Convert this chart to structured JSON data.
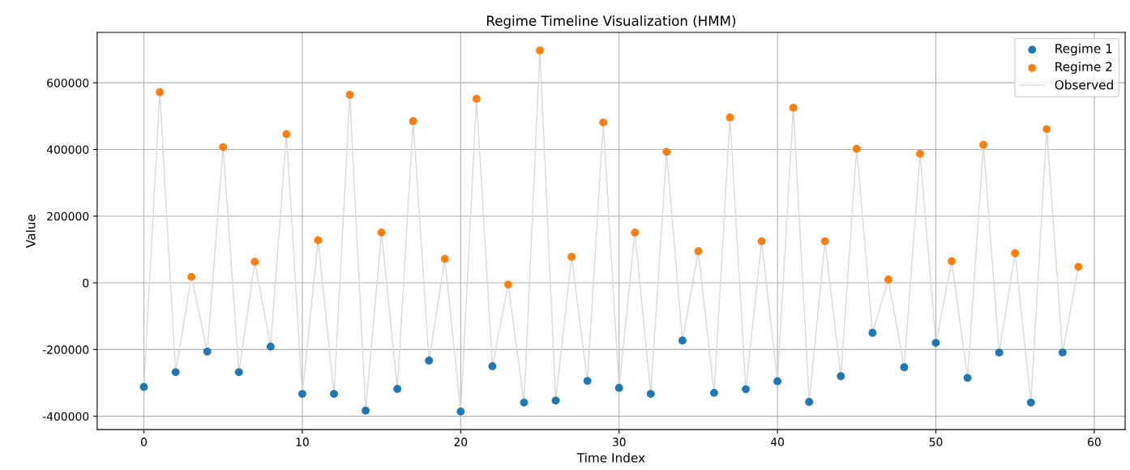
{
  "chart_data": {
    "type": "scatter",
    "title": "Regime Timeline Visualization (HMM)",
    "xlabel": "Time Index",
    "ylabel": "Value",
    "xlim": [
      -2.95,
      61.95
    ],
    "xticks": [
      0,
      10,
      20,
      30,
      40,
      50,
      60
    ],
    "ylim": [
      -440000,
      751000
    ],
    "yticks": [
      -400000,
      -200000,
      0,
      200000,
      400000,
      600000
    ],
    "grid": true,
    "legend": "top right",
    "marker": "circle",
    "series": [
      {
        "name": "Regime 1",
        "color": "#1f77b4",
        "x": [
          0,
          2,
          4,
          6,
          8,
          10,
          12,
          14,
          16,
          18,
          20,
          22,
          24,
          26,
          28,
          30,
          32,
          34,
          36,
          38,
          40,
          42,
          44,
          46,
          48,
          50,
          52,
          54,
          56,
          58
        ],
        "values": [
          -312000,
          -268000,
          -206000,
          -268000,
          -191000,
          -333000,
          -333000,
          -383000,
          -318000,
          -233000,
          -386000,
          -250000,
          -359000,
          -353000,
          -294000,
          -315000,
          -333000,
          -173000,
          -330000,
          -319000,
          -295000,
          -357000,
          -280000,
          -150000,
          -253000,
          -180000,
          -285000,
          -209000,
          -359000,
          -209000
        ]
      },
      {
        "name": "Regime 2",
        "color": "#ff7f0e",
        "x": [
          1,
          3,
          5,
          7,
          9,
          11,
          13,
          15,
          17,
          19,
          21,
          23,
          25,
          27,
          29,
          31,
          33,
          35,
          37,
          39,
          41,
          43,
          45,
          47,
          49,
          51,
          53,
          55,
          57,
          59
        ],
        "values": [
          572000,
          18000,
          407000,
          63000,
          446000,
          128000,
          564000,
          151000,
          485000,
          72000,
          552000,
          -5000,
          697000,
          78000,
          481000,
          151000,
          393000,
          95000,
          496000,
          125000,
          525000,
          125000,
          402000,
          10000,
          387000,
          65000,
          414000,
          89000,
          461000,
          48000
        ]
      },
      {
        "name": "Observed",
        "type": "line",
        "marker": "none",
        "color": "#d9d9d9",
        "x": [
          0,
          1,
          2,
          3,
          4,
          5,
          6,
          7,
          8,
          9,
          10,
          11,
          12,
          13,
          14,
          15,
          16,
          17,
          18,
          19,
          20,
          21,
          22,
          23,
          24,
          25,
          26,
          27,
          28,
          29,
          30,
          31,
          32,
          33,
          34,
          35,
          36,
          37,
          38,
          39,
          40,
          41,
          42,
          43,
          44,
          45,
          46,
          47,
          48,
          49,
          50,
          51,
          52,
          53,
          54,
          55,
          56,
          57,
          58,
          59
        ],
        "values": [
          -312000,
          572000,
          -268000,
          18000,
          -206000,
          407000,
          -268000,
          63000,
          -191000,
          446000,
          -333000,
          128000,
          -333000,
          564000,
          -383000,
          151000,
          -318000,
          485000,
          -233000,
          72000,
          -386000,
          552000,
          -250000,
          -5000,
          -359000,
          697000,
          -353000,
          78000,
          -294000,
          481000,
          -315000,
          151000,
          -333000,
          393000,
          -173000,
          95000,
          -330000,
          496000,
          -319000,
          125000,
          -295000,
          525000,
          -357000,
          125000,
          -280000,
          402000,
          -150000,
          10000,
          -253000,
          387000,
          -180000,
          65000,
          -285000,
          414000,
          -209000,
          89000,
          -359000,
          461000,
          -209000,
          48000
        ]
      }
    ]
  }
}
